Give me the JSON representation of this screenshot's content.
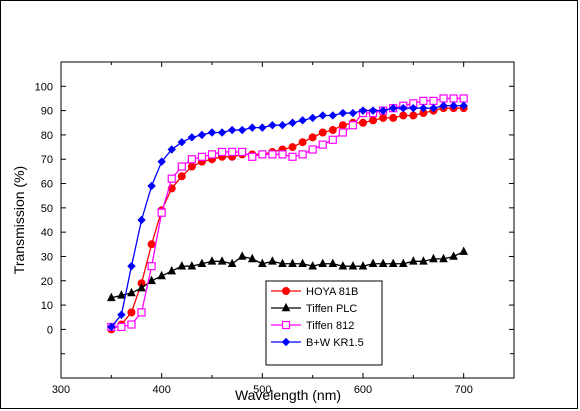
{
  "chart_data": {
    "type": "line",
    "xlabel": "Wavelength (nm)",
    "ylabel": "Transmission (%)",
    "xlim": [
      300,
      750
    ],
    "ylim": [
      -20,
      110
    ],
    "xticks": [
      300,
      400,
      500,
      600,
      700
    ],
    "yticks": [
      0,
      10,
      20,
      30,
      40,
      50,
      60,
      70,
      80,
      90,
      100
    ],
    "grid": false,
    "legend_position": "bottom-center",
    "series": [
      {
        "name": "HOYA 81B",
        "color": "#ff0000",
        "marker": "filled-circle",
        "x": [
          350,
          360,
          370,
          380,
          390,
          400,
          410,
          420,
          430,
          440,
          450,
          460,
          470,
          480,
          490,
          500,
          510,
          520,
          530,
          540,
          550,
          560,
          570,
          580,
          590,
          600,
          610,
          620,
          630,
          640,
          650,
          660,
          670,
          680,
          690,
          700
        ],
        "y": [
          0,
          2,
          7,
          19,
          35,
          49,
          58,
          63,
          67,
          69,
          70,
          71,
          71,
          72,
          72,
          72,
          73,
          74,
          75,
          77,
          79,
          81,
          82,
          84,
          85,
          85,
          86,
          87,
          87,
          88,
          88,
          89,
          90,
          91,
          91,
          91
        ]
      },
      {
        "name": "Tiffen PLC",
        "color": "#000000",
        "marker": "filled-triangle",
        "x": [
          350,
          360,
          370,
          380,
          390,
          400,
          410,
          420,
          430,
          440,
          450,
          460,
          470,
          480,
          490,
          500,
          510,
          520,
          530,
          540,
          550,
          560,
          570,
          580,
          590,
          600,
          610,
          620,
          630,
          640,
          650,
          660,
          670,
          680,
          690,
          700
        ],
        "y": [
          13,
          14,
          15,
          17,
          20,
          22,
          24,
          26,
          26,
          27,
          28,
          28,
          27,
          30,
          29,
          27,
          28,
          27,
          27,
          27,
          26,
          27,
          27,
          26,
          26,
          26,
          27,
          27,
          27,
          27,
          28,
          28,
          29,
          29,
          30,
          32
        ]
      },
      {
        "name": "Tiffen 812",
        "color": "#ff00ff",
        "marker": "open-square",
        "x": [
          350,
          360,
          370,
          380,
          390,
          400,
          410,
          420,
          430,
          440,
          450,
          460,
          470,
          480,
          490,
          500,
          510,
          520,
          530,
          540,
          550,
          560,
          570,
          580,
          590,
          600,
          610,
          620,
          630,
          640,
          650,
          660,
          670,
          680,
          690,
          700
        ],
        "y": [
          1,
          1,
          2,
          7,
          26,
          48,
          62,
          67,
          70,
          71,
          72,
          73,
          73,
          73,
          71,
          72,
          72,
          72,
          71,
          72,
          74,
          76,
          78,
          81,
          84,
          89,
          89,
          90,
          91,
          92,
          93,
          94,
          94,
          95,
          95,
          95
        ]
      },
      {
        "name": "B+W KR1.5",
        "color": "#0000ff",
        "marker": "filled-diamond",
        "x": [
          350,
          360,
          370,
          380,
          390,
          400,
          410,
          420,
          430,
          440,
          450,
          460,
          470,
          480,
          490,
          500,
          510,
          520,
          530,
          540,
          550,
          560,
          570,
          580,
          590,
          600,
          610,
          620,
          630,
          640,
          650,
          660,
          670,
          680,
          690,
          700
        ],
        "y": [
          1,
          6,
          26,
          45,
          59,
          69,
          74,
          77,
          79,
          80,
          81,
          81,
          82,
          82,
          83,
          83,
          84,
          84,
          85,
          86,
          87,
          88,
          88,
          89,
          89,
          90,
          90,
          90,
          91,
          91,
          91,
          91,
          91,
          92,
          92,
          92
        ]
      }
    ]
  }
}
